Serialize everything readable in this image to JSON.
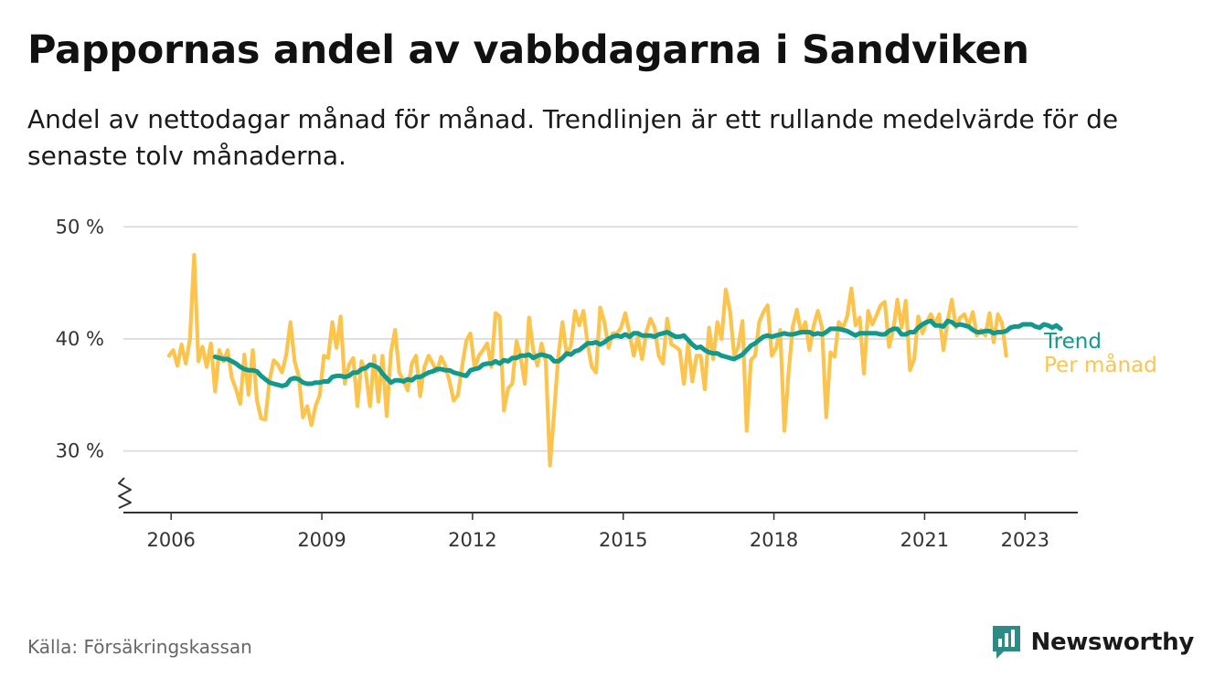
{
  "header": {
    "title": "Pappornas andel av vabbdagarna i Sandviken",
    "subtitle": "Andel av nettodagar månad för månad. Trendlinjen är ett rullande medelvärde för de senaste tolv månaderna."
  },
  "footer": {
    "source": "Källa: Försäkringskassan",
    "brand": "Newsworthy"
  },
  "colors": {
    "trend": "#13998c",
    "monthly": "#fcc44d",
    "grid": "#d9d9d9",
    "axis": "#333333",
    "brand": "#2d8a84"
  },
  "chart_data": {
    "type": "line",
    "y_tick_labels": [
      "30 %",
      "40 %",
      "50 %"
    ],
    "y_ticks": [
      30,
      40,
      50
    ],
    "ylim": [
      24.5,
      51
    ],
    "x_tick_labels": [
      "2006",
      "2009",
      "2012",
      "2015",
      "2018",
      "2021",
      "2023"
    ],
    "x_ticks": [
      2006,
      2009,
      2012,
      2015,
      2018,
      2021,
      2023
    ],
    "xlim": [
      2005.05,
      2024.05
    ],
    "grid": true,
    "axis_break": true,
    "legend_placement": "right end of lines",
    "series": [
      {
        "name": "Per månad",
        "color": "#fcc44d",
        "x_start": 2005.9583,
        "x_step": 0.083333,
        "values": [
          38.5,
          39,
          37.6,
          39.5,
          37.8,
          40,
          47.5,
          38,
          39.3,
          37.5,
          39.6,
          35.3,
          39,
          38,
          39,
          36.5,
          35.5,
          34.2,
          38.6,
          35,
          39,
          34.5,
          32.9,
          32.8,
          36.3,
          38.1,
          37.7,
          37,
          38.6,
          41.5,
          38,
          36.6,
          33,
          34,
          32.3,
          34,
          35,
          38.5,
          38.3,
          41.5,
          39.2,
          42,
          36,
          37.7,
          38.3,
          34,
          38,
          37,
          34,
          38.5,
          34.4,
          38.5,
          33.1,
          38.8,
          40.8,
          37,
          36.3,
          35.4,
          37.8,
          38.5,
          34.9,
          37.5,
          38.5,
          37.8,
          37.1,
          38.4,
          37.6,
          36.2,
          34.5,
          35,
          37.5,
          39.8,
          40.5,
          37.4,
          38.5,
          39,
          39.6,
          37.5,
          42.3,
          42,
          33.6,
          35.6,
          36,
          39.8,
          38.4,
          36,
          41.9,
          39,
          37.6,
          39.6,
          38,
          28.7,
          33.5,
          38.5,
          41.5,
          38.6,
          39.4,
          42.5,
          41.2,
          42.5,
          39.5,
          37.5,
          37,
          42.8,
          41.5,
          39.2,
          40.5,
          40.5,
          41,
          42.3,
          40.5,
          38.5,
          40.2,
          38.2,
          40.6,
          41.8,
          41,
          38.5,
          37.8,
          41.8,
          39.5,
          39.3,
          39,
          36,
          39.6,
          36.2,
          38.5,
          38.5,
          35.5,
          41,
          38.2,
          41.5,
          40,
          44.4,
          42.5,
          38.5,
          39.3,
          41.6,
          31.8,
          38.1,
          38.5,
          41.5,
          42.4,
          43,
          38.5,
          39.2,
          40.8,
          31.8,
          37,
          41.1,
          42.6,
          40.5,
          41.5,
          39,
          41.2,
          42.5,
          41,
          33,
          38.8,
          38.4,
          41.5,
          41,
          42,
          44.5,
          41.2,
          41.9,
          36.9,
          42.5,
          41.3,
          42.1,
          43,
          43.3,
          39.3,
          40.8,
          43.5,
          41,
          43.4,
          37.2,
          38.2,
          42,
          40.5,
          41.5,
          42.2,
          41.3,
          42.2,
          39,
          41.6,
          43.5,
          41,
          41.9,
          42.2,
          41.2,
          42.4,
          40.3,
          40.8,
          40.3,
          42.3,
          39.7,
          42.2,
          41.4,
          38.5
        ]
      },
      {
        "name": "Trend",
        "color": "#13998c",
        "x_start": 2006.875,
        "x_step": 0.083333,
        "values": [
          38.4,
          38.3,
          38.2,
          38.2,
          38.0,
          37.8,
          37.5,
          37.3,
          37.2,
          37.2,
          37.1,
          36.7,
          36.4,
          36.1,
          36.0,
          35.9,
          35.8,
          35.9,
          36.4,
          36.5,
          36.4,
          36.1,
          36.0,
          36.0,
          36.1,
          36.1,
          36.2,
          36.2,
          36.6,
          36.7,
          36.7,
          36.6,
          36.7,
          37.0,
          37.0,
          37.3,
          37.4,
          37.7,
          37.6,
          37.4,
          36.9,
          36.5,
          36.1,
          36.3,
          36.3,
          36.2,
          36.4,
          36.3,
          36.6,
          36.6,
          36.8,
          37.0,
          37.1,
          37.3,
          37.3,
          37.2,
          37.2,
          37.0,
          36.9,
          36.8,
          36.7,
          37.2,
          37.3,
          37.4,
          37.7,
          37.8,
          37.8,
          38.0,
          37.8,
          38.1,
          38.0,
          38.3,
          38.3,
          38.5,
          38.5,
          38.6,
          38.3,
          38.5,
          38.6,
          38.5,
          38.4,
          38.0,
          38.0,
          38.3,
          38.7,
          38.6,
          38.9,
          39.0,
          39.3,
          39.6,
          39.6,
          39.7,
          39.5,
          39.7,
          40.0,
          40.2,
          40.3,
          40.2,
          40.4,
          40.2,
          40.5,
          40.5,
          40.3,
          40.3,
          40.3,
          40.2,
          40.4,
          40.5,
          40.6,
          40.4,
          40.2,
          40.2,
          40.3,
          39.9,
          39.5,
          39.2,
          39.3,
          39.0,
          38.8,
          38.7,
          38.7,
          38.5,
          38.4,
          38.3,
          38.2,
          38.4,
          38.6,
          39.0,
          39.4,
          39.6,
          39.9,
          40.2,
          40.3,
          40.2,
          40.3,
          40.4,
          40.5,
          40.4,
          40.4,
          40.5,
          40.6,
          40.6,
          40.6,
          40.4,
          40.5,
          40.4,
          40.6,
          40.9,
          40.9,
          40.9,
          40.8,
          40.7,
          40.5,
          40.3,
          40.5,
          40.5,
          40.5,
          40.5,
          40.5,
          40.4,
          40.4,
          40.7,
          40.9,
          40.9,
          40.4,
          40.4,
          40.6,
          40.6,
          41.0,
          41.3,
          41.5,
          41.6,
          41.2,
          41.2,
          41.1,
          41.6,
          41.5,
          41.2,
          41.3,
          41.2,
          41.1,
          40.8,
          40.6,
          40.6,
          40.7,
          40.7,
          40.5,
          40.6,
          40.6,
          40.7,
          41.0,
          41.1,
          41.1,
          41.3,
          41.3,
          41.3,
          41.1,
          41.0,
          41.3,
          41.2,
          41.0,
          41.2,
          40.9
        ]
      }
    ]
  }
}
